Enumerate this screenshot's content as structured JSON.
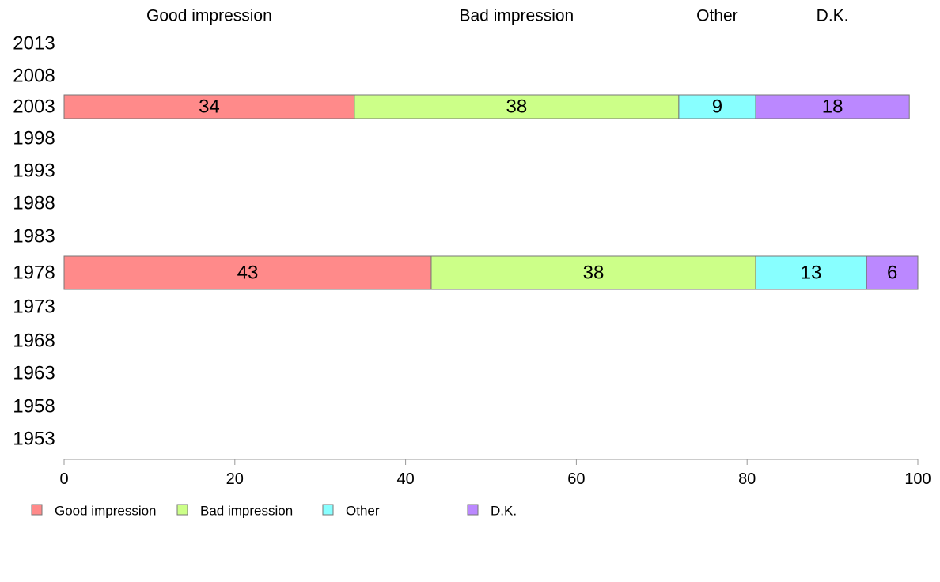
{
  "chart_data": {
    "type": "bar",
    "orientation": "horizontal",
    "stacked": true,
    "title": "",
    "xlabel": "",
    "ylabel": "",
    "xlim": [
      0,
      100
    ],
    "x_ticks": [
      "0",
      "20",
      "40",
      "60",
      "80",
      "100"
    ],
    "categories": [
      "2013",
      "2008",
      "2003",
      "1998",
      "1993",
      "1988",
      "1983",
      "1978",
      "1973",
      "1968",
      "1963",
      "1958",
      "1953"
    ],
    "series": [
      {
        "name": "Good impression",
        "color": "#ff8a8a",
        "values": [
          null,
          null,
          34,
          null,
          null,
          null,
          null,
          43,
          null,
          null,
          null,
          null,
          null
        ]
      },
      {
        "name": "Bad impression",
        "color": "#ccff88",
        "values": [
          null,
          null,
          38,
          null,
          null,
          null,
          null,
          38,
          null,
          null,
          null,
          null,
          null
        ]
      },
      {
        "name": "Other",
        "color": "#88ffff",
        "values": [
          null,
          null,
          9,
          null,
          null,
          null,
          null,
          13,
          null,
          null,
          null,
          null,
          null
        ]
      },
      {
        "name": "D.K.",
        "color": "#bb88ff",
        "values": [
          null,
          null,
          18,
          null,
          null,
          null,
          null,
          6,
          null,
          null,
          null,
          null,
          null
        ]
      }
    ],
    "legend_position": "bottom-left",
    "grid": false
  }
}
